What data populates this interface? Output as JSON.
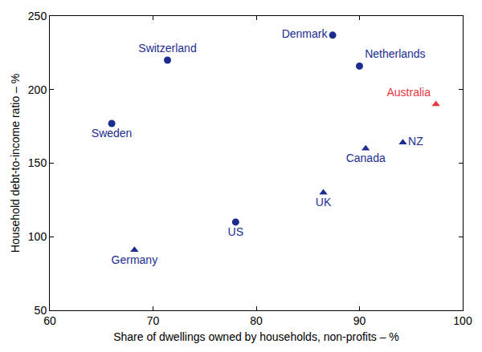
{
  "chart_data": {
    "type": "scatter",
    "x_label": "Share of dwellings owned by households, non-profits – %",
    "y_label": "Household debt-to-income ratio – %",
    "xlim": [
      60,
      100
    ],
    "xticks": [
      60,
      70,
      80,
      90,
      100
    ],
    "ylim": [
      50,
      250
    ],
    "yticks": [
      50,
      100,
      150,
      200,
      250
    ],
    "grid": false,
    "points": [
      {
        "label": "Switzerland",
        "x": 71.4,
        "y": 220,
        "marker": "circle",
        "color": "#1c2d8f"
      },
      {
        "label": "Denmark",
        "x": 87.4,
        "y": 237,
        "marker": "circle",
        "color": "#1c2d8f"
      },
      {
        "label": "Netherlands",
        "x": 90.0,
        "y": 216,
        "marker": "circle",
        "color": "#1c2d8f"
      },
      {
        "label": "Sweden",
        "x": 66.0,
        "y": 177,
        "marker": "circle",
        "color": "#1c2d8f"
      },
      {
        "label": "Australia",
        "x": 97.4,
        "y": 190,
        "marker": "triangle",
        "color": "#e8363f"
      },
      {
        "label": "NZ",
        "x": 94.2,
        "y": 164,
        "marker": "triangle",
        "color": "#1c2d8f"
      },
      {
        "label": "Canada",
        "x": 90.6,
        "y": 160,
        "marker": "triangle",
        "color": "#1c2d8f"
      },
      {
        "label": "UK",
        "x": 86.5,
        "y": 130,
        "marker": "triangle",
        "color": "#1c2d8f"
      },
      {
        "label": "US",
        "x": 78.0,
        "y": 110,
        "marker": "circle",
        "color": "#1c2d8f"
      },
      {
        "label": "Germany",
        "x": 68.2,
        "y": 91,
        "marker": "triangle",
        "color": "#1c2d8f"
      }
    ]
  }
}
